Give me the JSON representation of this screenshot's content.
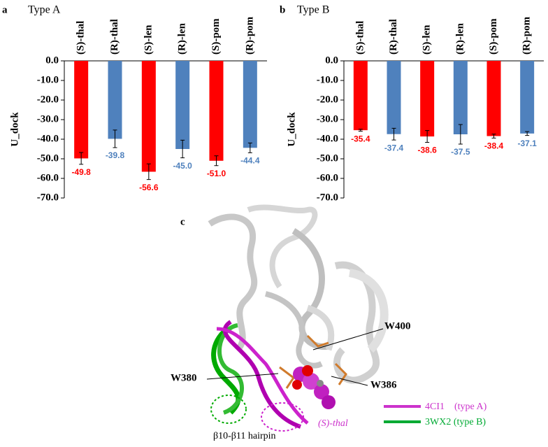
{
  "chart_data": [
    {
      "type": "bar",
      "panel": "a",
      "title": "Type A",
      "ylabel": "U_dock",
      "categories": [
        "(S)-thal",
        "(R)-thal",
        "(S)-len",
        "(R)-len",
        "(S)-pom",
        "(R)-pom"
      ],
      "values": [
        -49.8,
        -39.8,
        -56.6,
        -45.0,
        -51.0,
        -44.4
      ],
      "value_labels": [
        "-49.8",
        "-39.8",
        "-56.6",
        "-45.0",
        "-51.0",
        "-44.4"
      ],
      "errors": [
        3,
        4.5,
        4,
        4.5,
        2.5,
        2.5
      ],
      "colors": [
        "#ff0000",
        "#4f81bd",
        "#ff0000",
        "#4f81bd",
        "#ff0000",
        "#4f81bd"
      ],
      "ylim": [
        -70,
        0
      ],
      "yticks": [
        {
          "value": 0,
          "label": "0.0"
        },
        {
          "value": -10,
          "label": "-10.0"
        },
        {
          "value": -20,
          "label": "-20.0"
        },
        {
          "value": -30,
          "label": "-30.0"
        },
        {
          "value": -40,
          "label": "-40.0"
        },
        {
          "value": -50,
          "label": "-50.0"
        },
        {
          "value": -60,
          "label": "-60.0"
        },
        {
          "value": -70,
          "label": "-70.0"
        }
      ],
      "grid": false
    },
    {
      "type": "bar",
      "panel": "b",
      "title": "Type B",
      "ylabel": "U_dock",
      "categories": [
        "(S)-thal",
        "(R)-thal",
        "(S)-len",
        "(R)-len",
        "(S)-pom",
        "(R)-pom"
      ],
      "values": [
        -35.4,
        -37.4,
        -38.6,
        -37.5,
        -38.4,
        -37.1
      ],
      "value_labels": [
        "-35.4",
        "-37.4",
        "-38.6",
        "-37.5",
        "-38.4",
        "-37.1"
      ],
      "errors": [
        0.5,
        3,
        3,
        5,
        1,
        1
      ],
      "colors": [
        "#ff0000",
        "#4f81bd",
        "#ff0000",
        "#4f81bd",
        "#ff0000",
        "#4f81bd"
      ],
      "ylim": [
        -70,
        0
      ],
      "yticks": [
        {
          "value": 0,
          "label": "0.0"
        },
        {
          "value": -10,
          "label": "-10.0"
        },
        {
          "value": -20,
          "label": "-20.0"
        },
        {
          "value": -30,
          "label": "-30.0"
        },
        {
          "value": -40,
          "label": "-40.0"
        },
        {
          "value": -50,
          "label": "-50.0"
        },
        {
          "value": -60,
          "label": "-60.0"
        },
        {
          "value": -70,
          "label": "-70.0"
        }
      ],
      "grid": false
    }
  ],
  "panel_c": {
    "panel": "c",
    "w400": "W400",
    "w380": "W380",
    "w386": "W386",
    "legend_a": "4CI1    (type A)",
    "legend_b": "3WX2 (type B)",
    "ligand": "(S)-thal",
    "hairpin": "β10-β11 hairpin"
  }
}
